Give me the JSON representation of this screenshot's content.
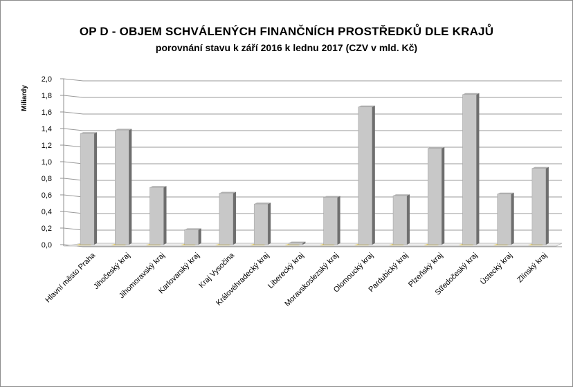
{
  "chart_data": {
    "type": "bar",
    "title": "OP D - OBJEM SCHVÁLENÝCH FINANČNÍCH PROSTŘEDKŮ DLE KRAJŮ",
    "subtitle": "porovnání stavu k září 2016 k lednu 2017 (CZV v mld. Kč)",
    "xlabel": "",
    "ylabel": "Miliardy",
    "ylim": [
      0,
      2.0
    ],
    "yticks": [
      "0,0",
      "0,2",
      "0,4",
      "0,6",
      "0,8",
      "1,0",
      "1,2",
      "1,4",
      "1,6",
      "1,8",
      "2,0"
    ],
    "grid": true,
    "categories": [
      "Hlavní město Praha",
      "Jihočeský kraj",
      "Jihomoravský kraj",
      "Karlovarský kraj",
      "Kraj Vysočina",
      "Královéhradecký kraj",
      "Liberecký kraj",
      "Moravskoslezský kraj",
      "Olomoucký kraj",
      "Pardubický kraj",
      "Plzeňský kraj",
      "Středočeský kraj",
      "Ústecký kraj",
      "Zlínský kraj"
    ],
    "series": [
      {
        "values": [
          0.005,
          0.005,
          0.005,
          0.005,
          0.005,
          0.005,
          0.005,
          0.005,
          0.005,
          0.005,
          0.005,
          0.005,
          0.005,
          0.005
        ],
        "color": "#e2c64a"
      },
      {
        "values": [
          1.34,
          1.38,
          0.69,
          0.18,
          0.62,
          0.49,
          0.02,
          0.57,
          1.66,
          0.59,
          1.16,
          1.81,
          0.61,
          0.92
        ],
        "color": "#c8c8c8"
      }
    ]
  }
}
